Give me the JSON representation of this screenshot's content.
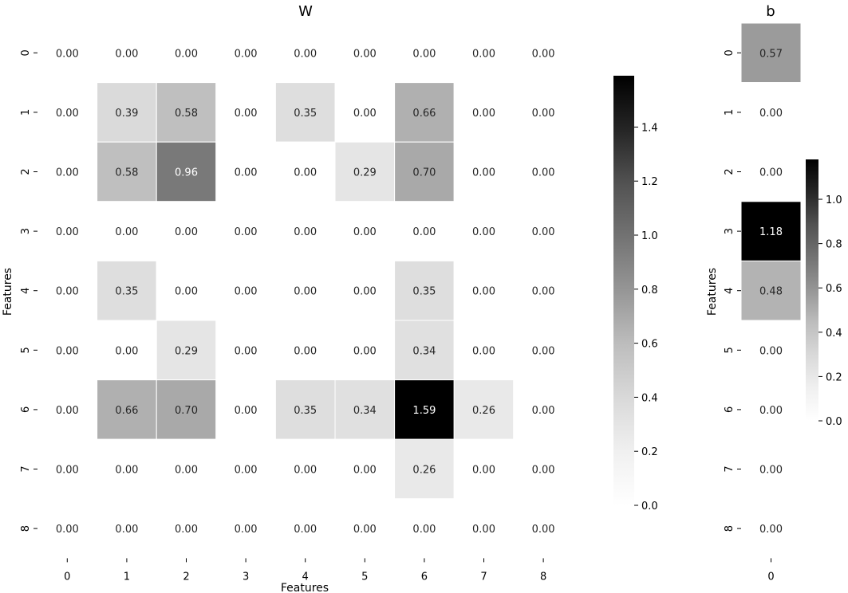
{
  "chart_data": [
    {
      "type": "heatmap",
      "title": "W",
      "xlabel": "Features",
      "ylabel": "Features",
      "x_tick_labels": [
        "0",
        "1",
        "2",
        "3",
        "4",
        "5",
        "6",
        "7",
        "8"
      ],
      "y_tick_labels": [
        "0",
        "1",
        "2",
        "3",
        "4",
        "5",
        "6",
        "7",
        "8"
      ],
      "values": [
        [
          0.0,
          0.0,
          0.0,
          0.0,
          0.0,
          0.0,
          0.0,
          0.0,
          0.0
        ],
        [
          0.0,
          0.39,
          0.58,
          0.0,
          0.35,
          0.0,
          0.66,
          0.0,
          0.0
        ],
        [
          0.0,
          0.58,
          0.96,
          0.0,
          0.0,
          0.29,
          0.7,
          0.0,
          0.0
        ],
        [
          0.0,
          0.0,
          0.0,
          0.0,
          0.0,
          0.0,
          0.0,
          0.0,
          0.0
        ],
        [
          0.0,
          0.35,
          0.0,
          0.0,
          0.0,
          0.0,
          0.35,
          0.0,
          0.0
        ],
        [
          0.0,
          0.0,
          0.29,
          0.0,
          0.0,
          0.0,
          0.34,
          0.0,
          0.0
        ],
        [
          0.0,
          0.66,
          0.7,
          0.0,
          0.35,
          0.34,
          1.59,
          0.26,
          0.0
        ],
        [
          0.0,
          0.0,
          0.0,
          0.0,
          0.0,
          0.0,
          0.26,
          0.0,
          0.0
        ],
        [
          0.0,
          0.0,
          0.0,
          0.0,
          0.0,
          0.0,
          0.0,
          0.0,
          0.0
        ]
      ],
      "colormap": "Greys",
      "vmin": 0,
      "vmax": 1.59,
      "colorbar_ticks": [
        "0.0",
        "0.2",
        "0.4",
        "0.6",
        "0.8",
        "1.0",
        "1.2",
        "1.4"
      ],
      "annotation_format": "0.00"
    },
    {
      "type": "heatmap",
      "title": "b",
      "xlabel": "",
      "ylabel": "Features",
      "x_tick_labels": [
        "0"
      ],
      "y_tick_labels": [
        "0",
        "1",
        "2",
        "3",
        "4",
        "5",
        "6",
        "7",
        "8"
      ],
      "values": [
        [
          0.57
        ],
        [
          0.0
        ],
        [
          0.0
        ],
        [
          1.18
        ],
        [
          0.48
        ],
        [
          0.0
        ],
        [
          0.0
        ],
        [
          0.0
        ],
        [
          0.0
        ]
      ],
      "colormap": "Greys",
      "vmin": 0,
      "vmax": 1.18,
      "colorbar_ticks": [
        "0.0",
        "0.2",
        "0.4",
        "0.6",
        "0.8",
        "1.0"
      ],
      "annotation_format": "0.00"
    }
  ]
}
